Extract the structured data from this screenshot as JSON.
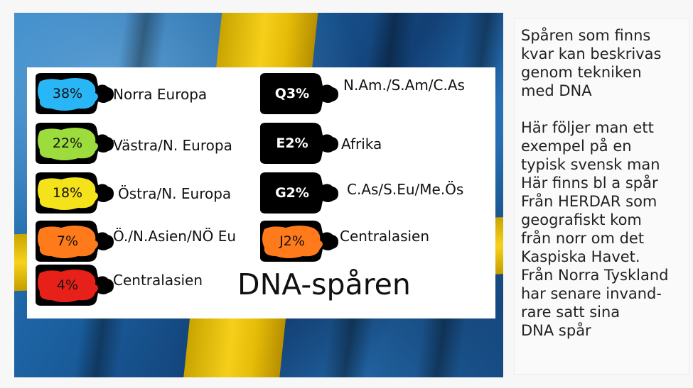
{
  "title": "DNA-spåren",
  "left_column": [
    {
      "percent": "38%",
      "label": "Norra Europa",
      "color": "#29b6f6"
    },
    {
      "percent": "22%",
      "label": "Västra/N. Europa",
      "color": "#9cdc3c"
    },
    {
      "percent": "18%",
      "label": "Östra/N. Europa",
      "color": "#f4e21a"
    },
    {
      "percent": "7%",
      "label": "Ö./N.Asien/NÖ Eu",
      "color": "#ff7a1a"
    },
    {
      "percent": "4%",
      "label": "Centralasien",
      "color": "#e8201a"
    }
  ],
  "right_column": [
    {
      "percent": "Q3%",
      "label": "N.Am./S.Am/C.As",
      "color": "#000000"
    },
    {
      "percent": "E2%",
      "label": "Afrika",
      "color": "#000000"
    },
    {
      "percent": "G2%",
      "label": "C.As/S.Eu/Me.Ös",
      "color": "#000000"
    },
    {
      "percent": "J2%",
      "label": "Centralasien",
      "color": "#ff7a1a"
    }
  ],
  "side_text": {
    "paragraph1": "Spåren som finns\nkvar kan beskrivas\ngenom tekniken\nmed DNA",
    "paragraph2": "Här följer man ett\nexempel på en\ntypisk svensk man\nHär finns bl a spår\nFrån HERDAR som\ngeografiskt kom\nfrån norr om det\nKaspiska Havet.\nFrån Norra Tyskland\nhar senare invand-\nrare satt sina\nDNA spår"
  },
  "flag_colors": {
    "blue": "#1a5d9c",
    "yellow": "#f5cf1a"
  }
}
